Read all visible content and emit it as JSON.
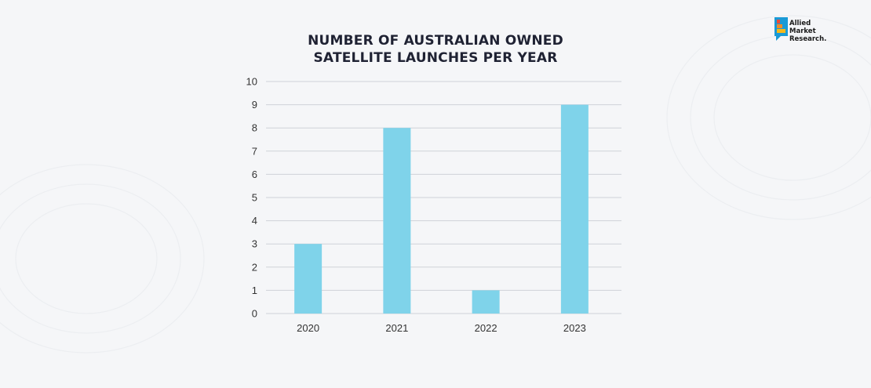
{
  "brand": {
    "logo_line1": "Allied",
    "logo_line2": "Market",
    "logo_line3": "Research."
  },
  "colors": {
    "bar": "#7fd3ea",
    "grid": "#cfd2d8",
    "text": "#1f2233",
    "background": "#f5f6f8"
  },
  "chart_data": {
    "type": "bar",
    "title_line1": "NUMBER OF AUSTRALIAN OWNED",
    "title_line2": "SATELLITE LAUNCHES PER YEAR",
    "categories": [
      "2020",
      "2021",
      "2022",
      "2023"
    ],
    "values": [
      3,
      8,
      1,
      9
    ],
    "xlabel": "",
    "ylabel": "",
    "ylim": [
      0,
      10
    ],
    "yticks": [
      "0",
      "1",
      "2",
      "3",
      "4",
      "5",
      "6",
      "7",
      "8",
      "9",
      "10"
    ],
    "grid": true,
    "legend": "none"
  }
}
